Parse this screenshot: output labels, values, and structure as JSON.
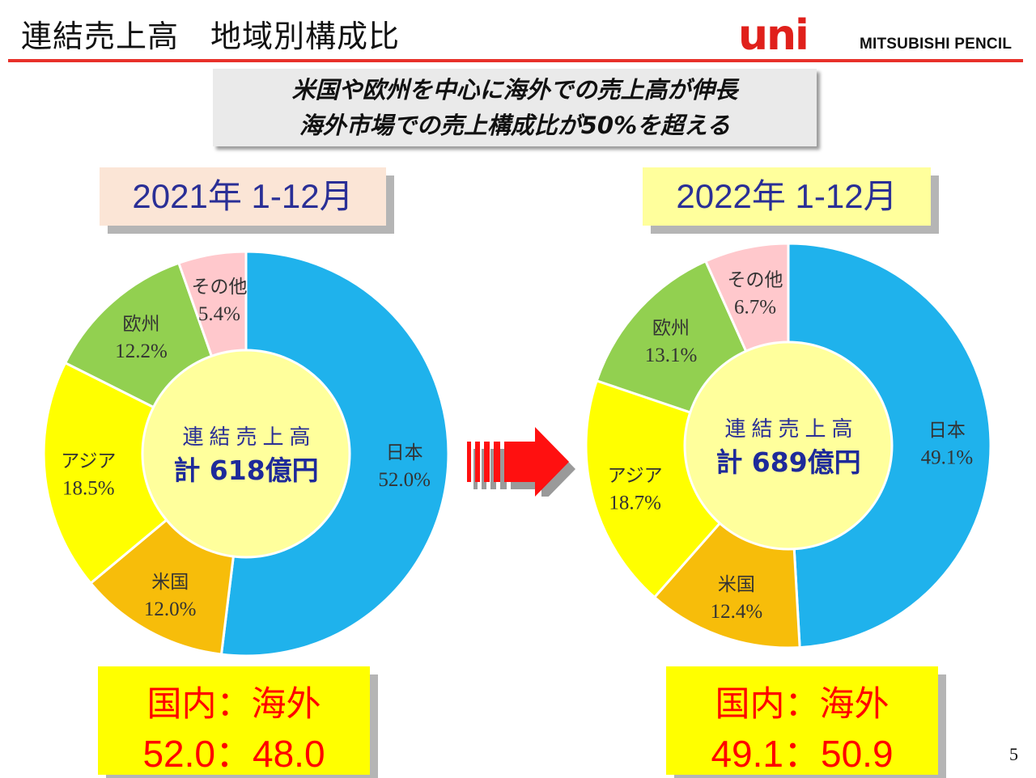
{
  "header": {
    "title": "連結売上高　地域別構成比",
    "logo_text": "uni",
    "company": "MITSUBISHI PENCIL"
  },
  "callout": {
    "line1": "米国や欧州を中心に海外での売上高が伸長",
    "line2": "海外市場での売上構成比が50%を超える"
  },
  "colors": {
    "japan": "#1fb2ec",
    "usa": "#f7bd0a",
    "asia": "#ffff00",
    "europe": "#92d050",
    "other": "#ffc8cc",
    "center": "#ffff9c",
    "accent_red": "#e8312a",
    "title_blue": "#2a2f96"
  },
  "chart_data": [
    {
      "type": "pie",
      "title": "2021年 1-12月",
      "center_title": "連結売上高",
      "center_total": "計 618億円",
      "slices": [
        {
          "name": "日本",
          "value": 52.0,
          "label": "52.0%",
          "color": "#1fb2ec"
        },
        {
          "name": "米国",
          "value": 12.0,
          "label": "12.0%",
          "color": "#f7bd0a"
        },
        {
          "name": "アジア",
          "value": 18.5,
          "label": "18.5%",
          "color": "#ffff00"
        },
        {
          "name": "欧州",
          "value": 12.2,
          "label": "12.2%",
          "color": "#92d050"
        },
        {
          "name": "その他",
          "value": 5.4,
          "label": "5.4%",
          "color": "#ffc8cc"
        }
      ],
      "domestic_overseas_label": "国内：海外",
      "domestic_overseas_value": "52.0：48.0"
    },
    {
      "type": "pie",
      "title": "2022年 1-12月",
      "center_title": "連結売上高",
      "center_total": "計 689億円",
      "slices": [
        {
          "name": "日本",
          "value": 49.1,
          "label": "49.1%",
          "color": "#1fb2ec"
        },
        {
          "name": "米国",
          "value": 12.4,
          "label": "12.4%",
          "color": "#f7bd0a"
        },
        {
          "name": "アジア",
          "value": 18.7,
          "label": "18.7%",
          "color": "#ffff00"
        },
        {
          "name": "欧州",
          "value": 13.1,
          "label": "13.1%",
          "color": "#92d050"
        },
        {
          "name": "その他",
          "value": 6.7,
          "label": "6.7%",
          "color": "#ffc8cc"
        }
      ],
      "domestic_overseas_label": "国内：海外",
      "domestic_overseas_value": "49.1：50.9"
    }
  ],
  "page_number": "5"
}
